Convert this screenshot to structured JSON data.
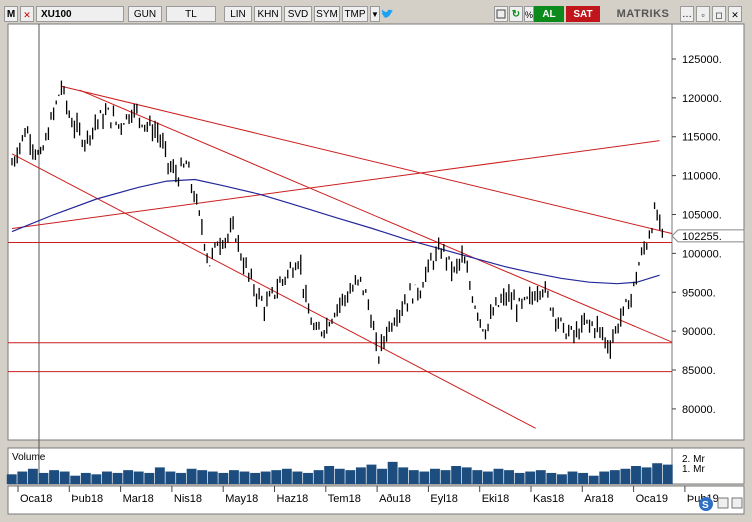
{
  "toolbar": {
    "logo": "M",
    "symbol": "XU100",
    "buttons": [
      "GUN",
      "TL",
      "LIN",
      "KHN",
      "SVD",
      "SYM",
      "TMP"
    ],
    "al_label": "AL",
    "sat_label": "SAT",
    "brand": "MATRIKS",
    "colors": {
      "al": "#0c8a1c",
      "sat": "#c0151a",
      "twitter": "#1da1f2"
    },
    "icons": [
      "close-icon",
      "dropdown-chevron-icon",
      "twitter-icon",
      "square-icon",
      "refresh-icon",
      "percent-icon",
      "ellipsis-icon",
      "window-icons"
    ]
  },
  "chart_data": {
    "type": "line",
    "subtype": "candlestick-price-with-trendlines",
    "symbol": "XU100",
    "x_ticks": [
      "Oca18",
      "Þub18",
      "Mar18",
      "Nis18",
      "May18",
      "Haz18",
      "Tem18",
      "Aðu18",
      "Eyl18",
      "Eki18",
      "Kas18",
      "Ara18",
      "Oca19",
      "Þub19"
    ],
    "y_ticks": [
      125000,
      120000,
      115000,
      110000,
      105000,
      100000,
      95000,
      90000,
      85000,
      80000
    ],
    "ylim": [
      76000,
      129500
    ],
    "last_value_label": "102255.",
    "price_series_weekly": [
      {
        "x": 0.0,
        "v": 111500
      },
      {
        "x": 0.5,
        "v": 116000
      },
      {
        "x": 1.0,
        "v": 112000
      },
      {
        "x": 1.4,
        "v": 117000
      },
      {
        "x": 1.75,
        "v": 121500
      },
      {
        "x": 2.1,
        "v": 117000
      },
      {
        "x": 2.6,
        "v": 114500
      },
      {
        "x": 3.0,
        "v": 117000
      },
      {
        "x": 3.4,
        "v": 118000
      },
      {
        "x": 3.8,
        "v": 116500
      },
      {
        "x": 4.3,
        "v": 118500
      },
      {
        "x": 4.8,
        "v": 116500
      },
      {
        "x": 5.2,
        "v": 115500
      },
      {
        "x": 5.6,
        "v": 111000
      },
      {
        "x": 5.9,
        "v": 110000
      },
      {
        "x": 6.2,
        "v": 111500
      },
      {
        "x": 6.5,
        "v": 107000
      },
      {
        "x": 6.8,
        "v": 102500
      },
      {
        "x": 7.0,
        "v": 98500
      },
      {
        "x": 7.3,
        "v": 101500
      },
      {
        "x": 7.6,
        "v": 102000
      },
      {
        "x": 7.9,
        "v": 103000
      },
      {
        "x": 8.2,
        "v": 99000
      },
      {
        "x": 8.6,
        "v": 95500
      },
      {
        "x": 9.0,
        "v": 93000
      },
      {
        "x": 9.4,
        "v": 95500
      },
      {
        "x": 9.8,
        "v": 97500
      },
      {
        "x": 10.2,
        "v": 99500
      },
      {
        "x": 10.5,
        "v": 92500
      },
      {
        "x": 10.8,
        "v": 89500
      },
      {
        "x": 11.2,
        "v": 91000
      },
      {
        "x": 11.6,
        "v": 93500
      },
      {
        "x": 12.0,
        "v": 95000
      },
      {
        "x": 12.4,
        "v": 96500
      },
      {
        "x": 12.7,
        "v": 93000
      },
      {
        "x": 13.0,
        "v": 86500
      },
      {
        "x": 13.3,
        "v": 90000
      },
      {
        "x": 13.7,
        "v": 92500
      },
      {
        "x": 14.1,
        "v": 94500
      },
      {
        "x": 14.5,
        "v": 95500
      },
      {
        "x": 14.9,
        "v": 99000
      },
      {
        "x": 15.3,
        "v": 100500
      },
      {
        "x": 15.7,
        "v": 97500
      },
      {
        "x": 16.0,
        "v": 99500
      },
      {
        "x": 16.4,
        "v": 94000
      },
      {
        "x": 16.8,
        "v": 90000
      },
      {
        "x": 17.2,
        "v": 93000
      },
      {
        "x": 17.6,
        "v": 94500
      },
      {
        "x": 18.0,
        "v": 93000
      },
      {
        "x": 18.4,
        "v": 94000
      },
      {
        "x": 18.8,
        "v": 96000
      },
      {
        "x": 19.2,
        "v": 93000
      },
      {
        "x": 19.6,
        "v": 90000
      },
      {
        "x": 20.0,
        "v": 89500
      },
      {
        "x": 20.4,
        "v": 91000
      },
      {
        "x": 20.8,
        "v": 90500
      },
      {
        "x": 21.2,
        "v": 88000
      },
      {
        "x": 21.6,
        "v": 91500
      },
      {
        "x": 22.0,
        "v": 94500
      },
      {
        "x": 22.3,
        "v": 99000
      },
      {
        "x": 22.6,
        "v": 102000
      },
      {
        "x": 22.85,
        "v": 105500
      },
      {
        "x": 23.1,
        "v": 102255
      }
    ],
    "moving_average_weekly": [
      {
        "x": 0.0,
        "v": 102800
      },
      {
        "x": 1.5,
        "v": 105000
      },
      {
        "x": 3.0,
        "v": 107000
      },
      {
        "x": 4.5,
        "v": 108500
      },
      {
        "x": 5.5,
        "v": 109300
      },
      {
        "x": 6.5,
        "v": 109500
      },
      {
        "x": 7.5,
        "v": 108700
      },
      {
        "x": 8.8,
        "v": 107600
      },
      {
        "x": 10.0,
        "v": 106300
      },
      {
        "x": 11.5,
        "v": 104600
      },
      {
        "x": 12.8,
        "v": 103200
      },
      {
        "x": 14.0,
        "v": 101800
      },
      {
        "x": 15.5,
        "v": 100300
      },
      {
        "x": 16.5,
        "v": 99300
      },
      {
        "x": 17.5,
        "v": 98300
      },
      {
        "x": 18.5,
        "v": 97500
      },
      {
        "x": 19.5,
        "v": 96800
      },
      {
        "x": 20.5,
        "v": 96300
      },
      {
        "x": 21.5,
        "v": 96100
      },
      {
        "x": 22.2,
        "v": 96300
      },
      {
        "x": 23.0,
        "v": 97200
      }
    ],
    "horizontal_lines": [
      101400,
      88500,
      84800
    ],
    "trendlines": [
      {
        "x1": 0.0,
        "v1": 103200,
        "x2": 23.0,
        "v2": 114500
      },
      {
        "x1": 1.75,
        "v1": 121500,
        "x2": 23.5,
        "v2": 102500
      },
      {
        "x1": 0.0,
        "v1": 112800,
        "x2": 18.6,
        "v2": 77500
      },
      {
        "x1": 2.4,
        "v1": 121000,
        "x2": 23.5,
        "v2": 88500
      }
    ],
    "volume_labels": [
      "Volume",
      "2. Mr",
      "1. Mr"
    ],
    "volume_weekly_bn": [
      0.7,
      0.9,
      1.1,
      0.8,
      1.0,
      0.9,
      0.6,
      0.8,
      0.7,
      0.9,
      0.8,
      1.0,
      0.9,
      0.8,
      1.2,
      0.9,
      0.8,
      1.1,
      1.0,
      0.9,
      0.8,
      1.0,
      0.9,
      0.8,
      0.9,
      1.0,
      1.1,
      0.9,
      0.8,
      1.0,
      1.3,
      1.1,
      1.0,
      1.2,
      1.4,
      1.1,
      1.6,
      1.2,
      1.0,
      0.9,
      1.1,
      1.0,
      1.3,
      1.2,
      1.0,
      0.9,
      1.1,
      1.0,
      0.8,
      0.9,
      1.0,
      0.8,
      0.7,
      0.9,
      0.8,
      0.6,
      0.9,
      1.0,
      1.1,
      1.3,
      1.2,
      1.5,
      1.4
    ],
    "colors": {
      "price": "#000000",
      "moving_average": "#24289a",
      "lines": "#cc1e1e",
      "volume": "#1c4d7e"
    }
  }
}
